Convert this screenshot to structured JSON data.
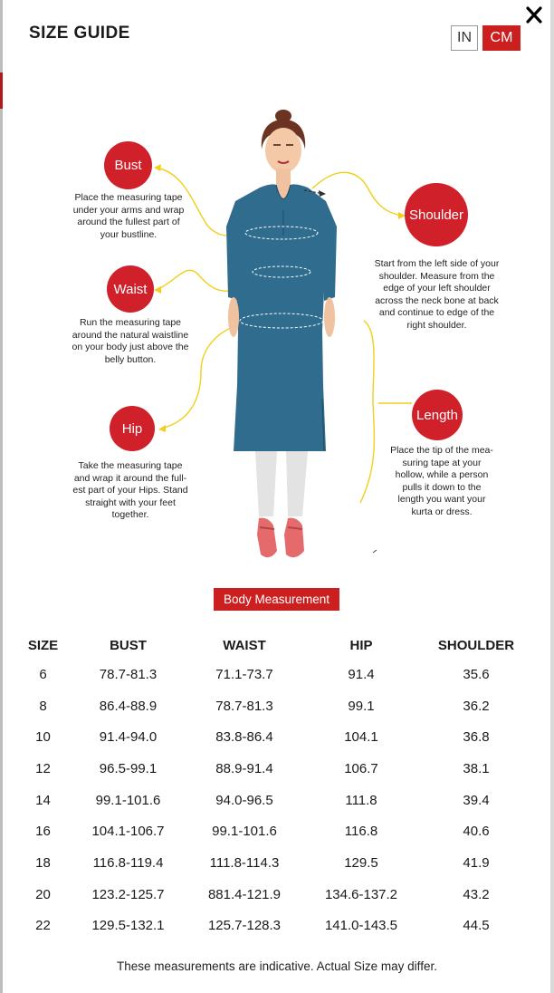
{
  "header": {
    "title": "SIZE GUIDE"
  },
  "units": {
    "options": [
      "IN",
      "CM"
    ],
    "selected": "CM"
  },
  "figure": {
    "bust": {
      "label": "Bust",
      "lines": [
        "Place the measuring tape",
        "under your arms and wrap",
        "around the fullest part of",
        "your bustline."
      ]
    },
    "waist": {
      "label": "Waist",
      "lines": [
        "Run the measuring tape",
        "around the natural waistline",
        "on your body just above the",
        "belly button."
      ]
    },
    "hip": {
      "label": "Hip",
      "lines": [
        "Take the measuring tape",
        "and wrap it around the full-",
        "est part of your Hips. Stand",
        "straight with your feet",
        "together."
      ]
    },
    "shoulder": {
      "label": "Shoulder",
      "lines": [
        "Start from the left side of your",
        "shoulder. Measure from the",
        "edge of your left shoulder",
        "across the neck bone at back",
        "and continue to edge of the",
        "right shoulder."
      ]
    },
    "length": {
      "label": "Length",
      "lines": [
        "Place the tip of the mea-",
        "suring tape at your",
        "hollow, while a person",
        "pulls it down to the",
        "length you want your",
        "kurta or dress."
      ]
    }
  },
  "body_measurement_label": "Body Measurement",
  "table": {
    "headers": [
      "SIZE",
      "BUST",
      "WAIST",
      "HIP",
      "SHOULDER"
    ],
    "rows": [
      [
        "6",
        "78.7-81.3",
        "71.1-73.7",
        "91.4",
        "35.6"
      ],
      [
        "8",
        "86.4-88.9",
        "78.7-81.3",
        "99.1",
        "36.2"
      ],
      [
        "10",
        "91.4-94.0",
        "83.8-86.4",
        "104.1",
        "36.8"
      ],
      [
        "12",
        "96.5-99.1",
        "88.9-91.4",
        "106.7",
        "38.1"
      ],
      [
        "14",
        "99.1-101.6",
        "94.0-96.5",
        "111.8",
        "39.4"
      ],
      [
        "16",
        "104.1-106.7",
        "99.1-101.6",
        "116.8",
        "40.6"
      ],
      [
        "18",
        "116.8-119.4",
        "111.8-114.3",
        "129.5",
        "41.9"
      ],
      [
        "20",
        "123.2-125.7",
        "881.4-121.9",
        "134.6-137.2",
        "43.2"
      ],
      [
        "22",
        "129.5-132.1",
        "125.7-128.3",
        "141.0-143.5",
        "44.5"
      ]
    ]
  },
  "footer": {
    "note": "These measurements are indicative. Actual Size may differ."
  },
  "colors": {
    "accent": "#cc1f1f",
    "bubble": "#d0202a",
    "kurta": "#2f6c8e",
    "guide_line": "#f1cf1a"
  }
}
